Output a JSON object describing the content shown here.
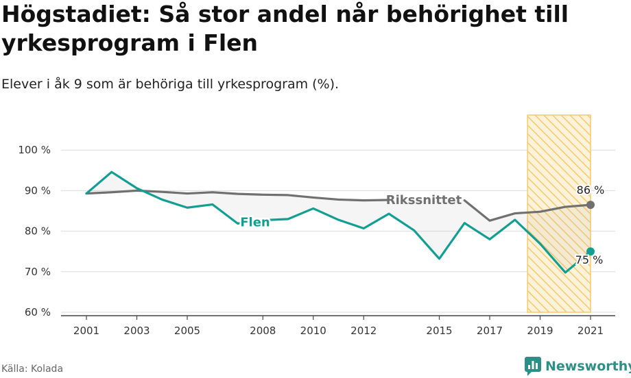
{
  "title": "Högstadiet: Så stor andel når behörighet till yrkesprogram i Flen",
  "subtitle": "Elever i åk 9 som är behöriga till yrkesprogram (%).",
  "source": "Källa: Kolada",
  "brand": "Newsworthy",
  "chart_data": {
    "type": "line",
    "x": [
      2001,
      2002,
      2003,
      2004,
      2005,
      2006,
      2007,
      2008,
      2009,
      2010,
      2011,
      2012,
      2013,
      2014,
      2015,
      2016,
      2017,
      2018,
      2019,
      2020,
      2021
    ],
    "xticks": [
      {
        "value": 2001,
        "label": "2001"
      },
      {
        "value": 2003,
        "label": "2003"
      },
      {
        "value": 2005,
        "label": "2005"
      },
      {
        "value": 2008,
        "label": "2008"
      },
      {
        "value": 2010,
        "label": "2010"
      },
      {
        "value": 2012,
        "label": "2012"
      },
      {
        "value": 2015,
        "label": "2015"
      },
      {
        "value": 2017,
        "label": "2017"
      },
      {
        "value": 2019,
        "label": "2019"
      },
      {
        "value": 2021,
        "label": "2021"
      }
    ],
    "yticks": [
      {
        "value": 60,
        "label": "60 %"
      },
      {
        "value": 70,
        "label": "70 %"
      },
      {
        "value": 80,
        "label": "80 %"
      },
      {
        "value": 90,
        "label": "90 %"
      },
      {
        "value": 100,
        "label": "100 %"
      }
    ],
    "ylim": [
      60,
      104
    ],
    "xlim": [
      2000,
      2021.5
    ],
    "grid": true,
    "highlight_range": [
      2018.5,
      2021
    ],
    "series": [
      {
        "name": "Rikssnittet",
        "color": "#707070",
        "values": [
          89.3,
          89.6,
          90.0,
          89.7,
          89.3,
          89.6,
          89.2,
          89.0,
          88.9,
          88.3,
          87.8,
          87.6,
          87.7,
          null,
          null,
          87.6,
          82.6,
          84.4,
          84.8,
          86.0,
          86.5
        ],
        "end_label": "86 %"
      },
      {
        "name": "Flen",
        "color": "#139e93",
        "values": [
          89.3,
          94.6,
          90.6,
          87.8,
          85.8,
          86.6,
          81.9,
          82.7,
          83.0,
          85.6,
          82.8,
          80.7,
          84.3,
          80.2,
          73.2,
          82.0,
          78.0,
          82.8,
          76.9,
          69.8,
          75.0
        ],
        "end_label": "75 %"
      }
    ]
  }
}
